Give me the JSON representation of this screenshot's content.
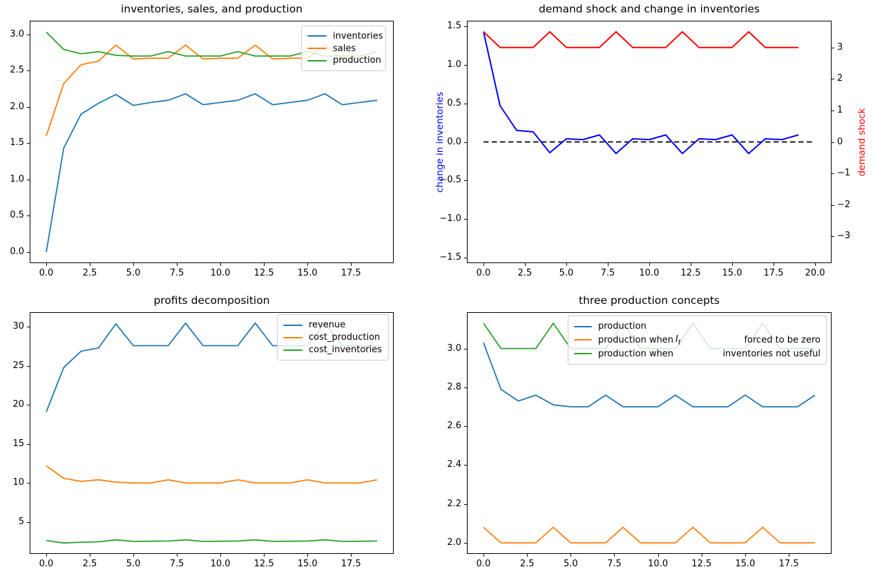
{
  "figure": {
    "background": "#ffffff"
  },
  "palette": {
    "mpl_blue": "#1f77b4",
    "mpl_orange": "#ff7f0e",
    "mpl_green": "#2ca02c",
    "pure_blue": "#0000ff",
    "pure_red": "#ff0000",
    "black": "#000000"
  },
  "chart_data": [
    {
      "id": "inventories-sales-production",
      "type": "line",
      "title": "inventories, sales, and production",
      "x": [
        0,
        1,
        2,
        3,
        4,
        5,
        6,
        7,
        8,
        9,
        10,
        11,
        12,
        13,
        14,
        15,
        16,
        17,
        18,
        19
      ],
      "series": [
        {
          "name": "inventories",
          "color": "#1f77b4",
          "values": [
            0.0,
            1.43,
            1.9,
            2.05,
            2.17,
            2.02,
            2.06,
            2.09,
            2.18,
            2.03,
            2.06,
            2.09,
            2.18,
            2.03,
            2.06,
            2.09,
            2.18,
            2.03,
            2.06,
            2.09
          ]
        },
        {
          "name": "sales",
          "color": "#ff7f0e",
          "values": [
            1.6,
            2.32,
            2.58,
            2.63,
            2.85,
            2.66,
            2.67,
            2.67,
            2.85,
            2.66,
            2.67,
            2.67,
            2.85,
            2.66,
            2.67,
            2.67,
            2.85,
            2.66,
            2.67,
            2.67
          ]
        },
        {
          "name": "production",
          "color": "#2ca02c",
          "values": [
            3.03,
            2.79,
            2.73,
            2.76,
            2.71,
            2.7,
            2.7,
            2.76,
            2.7,
            2.7,
            2.7,
            2.76,
            2.7,
            2.7,
            2.7,
            2.76,
            2.7,
            2.7,
            2.7,
            2.76
          ]
        }
      ],
      "xlim": [
        -0.95,
        19.95
      ],
      "ylim": [
        -0.152,
        3.186
      ],
      "grid": false,
      "xticks": [
        {
          "v": 0,
          "t": "0.0"
        },
        {
          "v": 2.5,
          "t": "2.5"
        },
        {
          "v": 5,
          "t": "5.0"
        },
        {
          "v": 7.5,
          "t": "7.5"
        },
        {
          "v": 10,
          "t": "10.0"
        },
        {
          "v": 12.5,
          "t": "12.5"
        },
        {
          "v": 15,
          "t": "15.0"
        },
        {
          "v": 17.5,
          "t": "17.5"
        }
      ],
      "yticks": [
        {
          "v": 0,
          "t": "0.0"
        },
        {
          "v": 0.5,
          "t": "0.5"
        },
        {
          "v": 1,
          "t": "1.0"
        },
        {
          "v": 1.5,
          "t": "1.5"
        },
        {
          "v": 2,
          "t": "2.0"
        },
        {
          "v": 2.5,
          "t": "2.5"
        },
        {
          "v": 3,
          "t": "3.0"
        }
      ],
      "legend": {
        "position": "upper-right",
        "entries": [
          {
            "label": "inventories",
            "color": "#1f77b4"
          },
          {
            "label": "sales",
            "color": "#ff7f0e"
          },
          {
            "label": "production",
            "color": "#2ca02c"
          }
        ]
      }
    },
    {
      "id": "demand-shock-change-in-inventories",
      "type": "line",
      "title": "demand shock and change in inventories",
      "x": [
        0,
        1,
        2,
        3,
        4,
        5,
        6,
        7,
        8,
        9,
        10,
        11,
        12,
        13,
        14,
        15,
        16,
        17,
        18,
        19
      ],
      "series": [
        {
          "name": "zero line",
          "color": "#000000",
          "style": "dashed",
          "axis": "left",
          "width": 1.8,
          "x": [
            0,
            20
          ],
          "values": [
            0,
            0
          ]
        },
        {
          "name": "change in inventories",
          "color": "#0000ff",
          "axis": "left",
          "width": 2,
          "values": [
            1.43,
            0.47,
            0.15,
            0.13,
            -0.14,
            0.04,
            0.03,
            0.09,
            -0.15,
            0.04,
            0.03,
            0.09,
            -0.15,
            0.04,
            0.03,
            0.09,
            -0.15,
            0.04,
            0.03,
            0.09
          ]
        },
        {
          "name": "demand shock",
          "color": "#ff0000",
          "axis": "right",
          "width": 2,
          "values": [
            3.5,
            3.0,
            3.0,
            3.0,
            3.5,
            3.0,
            3.0,
            3.0,
            3.5,
            3.0,
            3.0,
            3.0,
            3.5,
            3.0,
            3.0,
            3.0,
            3.5,
            3.0,
            3.0,
            3.0
          ]
        }
      ],
      "xlim": [
        -1,
        21
      ],
      "ylim_left": [
        -1.57,
        1.57
      ],
      "ylim_right": [
        -3.85,
        3.85
      ],
      "ylabel_left": {
        "text": "change in inventories",
        "color": "#0000ff"
      },
      "ylabel_right": {
        "text": "demand shock",
        "color": "#ff0000"
      },
      "grid": false,
      "xticks": [
        {
          "v": 0,
          "t": "0.0"
        },
        {
          "v": 2.5,
          "t": "2.5"
        },
        {
          "v": 5,
          "t": "5.0"
        },
        {
          "v": 7.5,
          "t": "7.5"
        },
        {
          "v": 10,
          "t": "10.0"
        },
        {
          "v": 12.5,
          "t": "12.5"
        },
        {
          "v": 15,
          "t": "15.0"
        },
        {
          "v": 17.5,
          "t": "17.5"
        },
        {
          "v": 20,
          "t": "20.0"
        }
      ],
      "yticks_left": [
        {
          "v": -1.5,
          "t": "−1.5"
        },
        {
          "v": -1,
          "t": "−1.0"
        },
        {
          "v": -0.5,
          "t": "−0.5"
        },
        {
          "v": 0,
          "t": "0.0"
        },
        {
          "v": 0.5,
          "t": "0.5"
        },
        {
          "v": 1,
          "t": "1.0"
        },
        {
          "v": 1.5,
          "t": "1.5"
        }
      ],
      "yticks_right": [
        {
          "v": -3,
          "t": "−3"
        },
        {
          "v": -2,
          "t": "−2"
        },
        {
          "v": -1,
          "t": "−1"
        },
        {
          "v": 0,
          "t": "0"
        },
        {
          "v": 1,
          "t": "1"
        },
        {
          "v": 2,
          "t": "2"
        },
        {
          "v": 3,
          "t": "3"
        }
      ],
      "legend": null
    },
    {
      "id": "profits-decomposition",
      "type": "line",
      "title": "profits decomposition",
      "x": [
        0,
        1,
        2,
        3,
        4,
        5,
        6,
        7,
        8,
        9,
        10,
        11,
        12,
        13,
        14,
        15,
        16,
        17,
        18,
        19
      ],
      "series": [
        {
          "name": "revenue",
          "color": "#1f77b4",
          "values": [
            19.1,
            24.8,
            26.9,
            27.3,
            30.4,
            27.6,
            27.6,
            27.6,
            30.5,
            27.6,
            27.6,
            27.6,
            30.5,
            27.6,
            27.6,
            27.6,
            30.5,
            27.6,
            27.6,
            27.6
          ]
        },
        {
          "name": "cost_production",
          "color": "#ff7f0e",
          "values": [
            12.2,
            10.6,
            10.2,
            10.4,
            10.1,
            10.0,
            10.0,
            10.4,
            10.0,
            10.0,
            10.0,
            10.4,
            10.0,
            10.0,
            10.0,
            10.4,
            10.0,
            10.0,
            10.0,
            10.4
          ]
        },
        {
          "name": "cost_inventories",
          "color": "#2ca02c",
          "values": [
            2.62,
            2.3,
            2.4,
            2.45,
            2.7,
            2.5,
            2.52,
            2.55,
            2.7,
            2.5,
            2.52,
            2.55,
            2.7,
            2.5,
            2.52,
            2.55,
            2.7,
            2.5,
            2.52,
            2.55
          ]
        }
      ],
      "xlim": [
        -0.95,
        19.95
      ],
      "ylim": [
        0.9,
        31.9
      ],
      "grid": false,
      "xticks": [
        {
          "v": 0,
          "t": "0.0"
        },
        {
          "v": 2.5,
          "t": "2.5"
        },
        {
          "v": 5,
          "t": "5.0"
        },
        {
          "v": 7.5,
          "t": "7.5"
        },
        {
          "v": 10,
          "t": "10.0"
        },
        {
          "v": 12.5,
          "t": "12.5"
        },
        {
          "v": 15,
          "t": "15.0"
        },
        {
          "v": 17.5,
          "t": "17.5"
        }
      ],
      "yticks": [
        {
          "v": 5,
          "t": "5"
        },
        {
          "v": 10,
          "t": "10"
        },
        {
          "v": 15,
          "t": "15"
        },
        {
          "v": 20,
          "t": "20"
        },
        {
          "v": 25,
          "t": "25"
        },
        {
          "v": 30,
          "t": "30"
        }
      ],
      "legend": {
        "position": "upper-right",
        "entries": [
          {
            "label": "revenue",
            "color": "#1f77b4"
          },
          {
            "label": "cost_production",
            "color": "#ff7f0e"
          },
          {
            "label": "cost_inventories",
            "color": "#2ca02c"
          }
        ]
      }
    },
    {
      "id": "three-production-concepts",
      "type": "line",
      "title": "three production concepts",
      "x": [
        0,
        1,
        2,
        3,
        4,
        5,
        6,
        7,
        8,
        9,
        10,
        11,
        12,
        13,
        14,
        15,
        16,
        17,
        18,
        19
      ],
      "series": [
        {
          "name": "production",
          "color": "#1f77b4",
          "values": [
            3.03,
            2.79,
            2.73,
            2.76,
            2.71,
            2.7,
            2.7,
            2.76,
            2.7,
            2.7,
            2.7,
            2.76,
            2.7,
            2.7,
            2.7,
            2.76,
            2.7,
            2.7,
            2.7,
            2.76
          ]
        },
        {
          "name": "production when It forced to be zero",
          "color": "#ff7f0e",
          "values": [
            2.08,
            2.0,
            2.0,
            2.0,
            2.08,
            2.0,
            2.0,
            2.0,
            2.08,
            2.0,
            2.0,
            2.0,
            2.08,
            2.0,
            2.0,
            2.0,
            2.08,
            2.0,
            2.0,
            2.0
          ]
        },
        {
          "name": "production when inventories not useful",
          "color": "#2ca02c",
          "values": [
            3.13,
            3.0,
            3.0,
            3.0,
            3.13,
            3.0,
            3.0,
            3.0,
            3.13,
            3.0,
            3.0,
            3.0,
            3.13,
            3.0,
            3.0,
            3.0,
            3.13,
            3.0,
            3.0,
            3.0
          ]
        }
      ],
      "xlim": [
        -0.95,
        19.95
      ],
      "ylim": [
        1.943,
        3.187
      ],
      "grid": false,
      "xticks": [
        {
          "v": 0,
          "t": "0.0"
        },
        {
          "v": 2.5,
          "t": "2.5"
        },
        {
          "v": 5,
          "t": "5.0"
        },
        {
          "v": 7.5,
          "t": "7.5"
        },
        {
          "v": 10,
          "t": "10.0"
        },
        {
          "v": 12.5,
          "t": "12.5"
        },
        {
          "v": 15,
          "t": "15.0"
        },
        {
          "v": 17.5,
          "t": "17.5"
        }
      ],
      "yticks": [
        {
          "v": 2,
          "t": "2.0"
        },
        {
          "v": 2.2,
          "t": "2.2"
        },
        {
          "v": 2.4,
          "t": "2.4"
        },
        {
          "v": 2.6,
          "t": "2.6"
        },
        {
          "v": 2.8,
          "t": "2.8"
        },
        {
          "v": 3,
          "t": "3.0"
        }
      ],
      "legend": {
        "position": "upper-right-wide",
        "entries": [
          {
            "label": "production",
            "color": "#1f77b4"
          },
          {
            "label": "production when",
            "math": "I",
            "sub": "t",
            "label2": "forced to be zero",
            "color": "#ff7f0e"
          },
          {
            "label": "production when",
            "label2": "inventories not useful",
            "color": "#2ca02c"
          }
        ]
      }
    }
  ]
}
